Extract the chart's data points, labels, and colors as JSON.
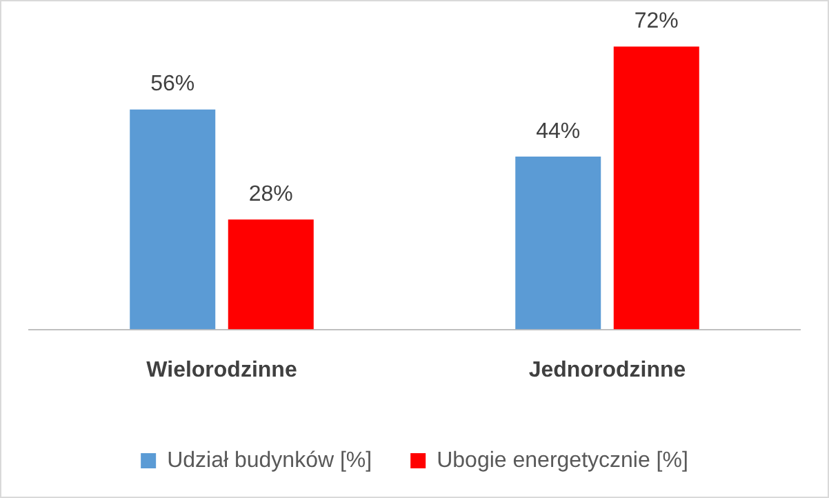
{
  "chart_data": {
    "type": "bar",
    "categories": [
      "Wielorodzinne",
      "Jednorodzinne"
    ],
    "series": [
      {
        "name": "Udział budynków [%]",
        "color": "#5b9bd5",
        "values": [
          56,
          44
        ],
        "value_labels": [
          "56%",
          "44%"
        ]
      },
      {
        "name": "Ubogie energetycznie [%]",
        "color": "#ff0000",
        "values": [
          28,
          72
        ],
        "value_labels": [
          "28%",
          "72%"
        ]
      }
    ],
    "tick_labels": "x",
    "grid": false,
    "legend": "bottom"
  }
}
